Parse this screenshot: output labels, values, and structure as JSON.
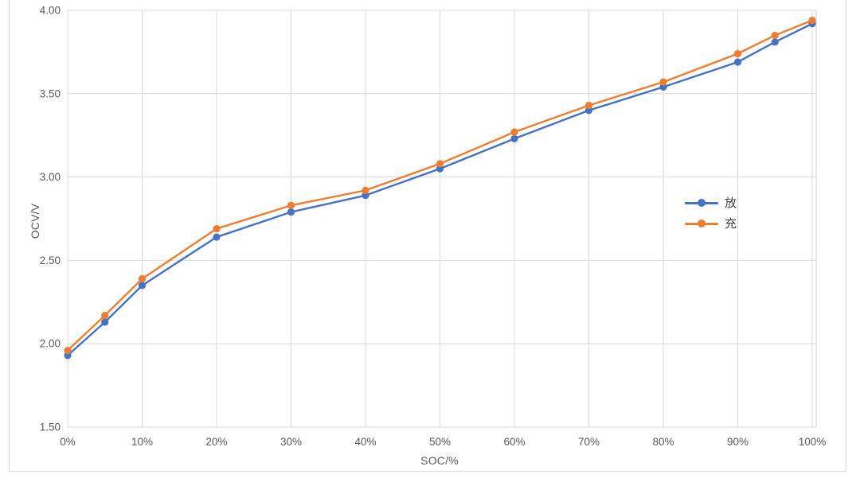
{
  "chart_data": {
    "type": "line",
    "title": "",
    "xlabel": "SOC/%",
    "ylabel": "OCV/V",
    "xlim": [
      0,
      100
    ],
    "ylim": [
      1.5,
      4.0
    ],
    "grid": true,
    "legend_position": "inside-right",
    "x": [
      0,
      5,
      10,
      20,
      30,
      40,
      50,
      60,
      70,
      80,
      90,
      95,
      100
    ],
    "x_ticks": [
      0,
      10,
      20,
      30,
      40,
      50,
      60,
      70,
      80,
      90,
      100
    ],
    "x_tick_labels": [
      "0%",
      "10%",
      "20%",
      "30%",
      "40%",
      "50%",
      "60%",
      "70%",
      "80%",
      "90%",
      "100%"
    ],
    "y_ticks": [
      1.5,
      2.0,
      2.5,
      3.0,
      3.5,
      4.0
    ],
    "y_tick_labels": [
      "1.50",
      "2.00",
      "2.50",
      "3.00",
      "3.50",
      "4.00"
    ],
    "series": [
      {
        "name": "放",
        "color": "#4472C4",
        "values": [
          1.93,
          2.13,
          2.35,
          2.64,
          2.79,
          2.89,
          3.05,
          3.23,
          3.4,
          3.54,
          3.69,
          3.81,
          3.92
        ]
      },
      {
        "name": "充",
        "color": "#ED7D31",
        "values": [
          1.96,
          2.17,
          2.39,
          2.69,
          2.83,
          2.92,
          3.08,
          3.27,
          3.43,
          3.57,
          3.74,
          3.85,
          3.94
        ]
      }
    ]
  },
  "colors": {
    "gridline": "#d9d9d9",
    "plot_border": "#d2d2d2",
    "tick_text": "#595959",
    "frame_border": "#d7d7d7",
    "background": "#ffffff"
  }
}
